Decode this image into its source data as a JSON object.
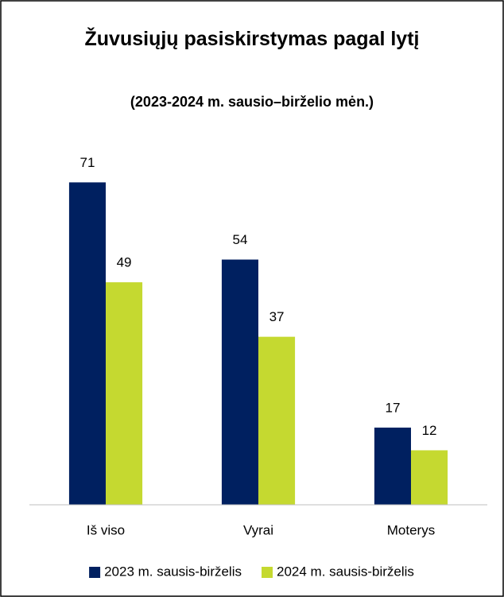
{
  "chart_data": {
    "type": "bar",
    "title": "Žuvusiųjų pasiskirstymas pagal lytį",
    "subtitle": "(2023-2024 m. sausio–birželio mėn.)",
    "categories": [
      "Iš viso",
      "Vyrai",
      "Moterys"
    ],
    "series": [
      {
        "name": "2023 m. sausis-birželis",
        "color": "#002060",
        "values": [
          71,
          54,
          17
        ]
      },
      {
        "name": "2024 m. sausis-birželis",
        "color": "#c5d930",
        "values": [
          49,
          37,
          12
        ]
      }
    ],
    "ylim": [
      0,
      80
    ],
    "legend": "bottom"
  }
}
